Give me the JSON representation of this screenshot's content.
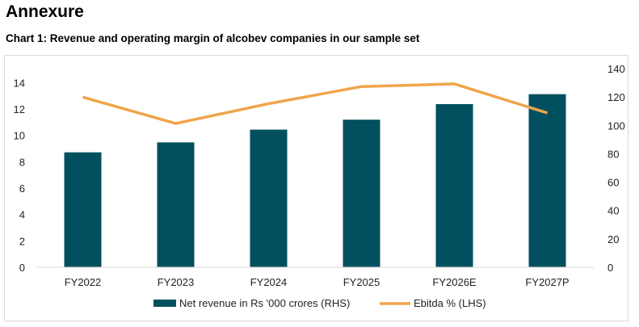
{
  "header": {
    "title": "Annexure",
    "chart_title": "Chart 1: Revenue and operating margin of alcobev companies in our sample set"
  },
  "chart_data": {
    "type": "bar+line",
    "title": "Chart 1: Revenue and operating margin of alcobev companies in our sample set",
    "categories": [
      "FY2022",
      "FY2023",
      "FY2024",
      "FY2025",
      "FY2026E",
      "FY2027P"
    ],
    "series": [
      {
        "name": "Net revenue in Rs '000 crores (RHS)",
        "type": "bar",
        "axis": "right",
        "color": "#02505f",
        "values": [
          81,
          88,
          97,
          104,
          115,
          122
        ]
      },
      {
        "name": "Ebitda % (LHS)",
        "type": "line",
        "axis": "left",
        "color": "#f0a54a",
        "values": [
          12.9,
          10.9,
          12.4,
          13.7,
          13.9,
          11.7
        ]
      }
    ],
    "left_axis": {
      "ylim": [
        0,
        14
      ],
      "ticks": [
        "0",
        "2",
        "4",
        "6",
        "8",
        "10",
        "12",
        "14"
      ]
    },
    "right_axis": {
      "ylim": [
        0,
        140
      ],
      "ticks": [
        "0",
        "20",
        "40",
        "60",
        "80",
        "100",
        "120",
        "140"
      ]
    },
    "grid": false,
    "legend": "bottom"
  }
}
